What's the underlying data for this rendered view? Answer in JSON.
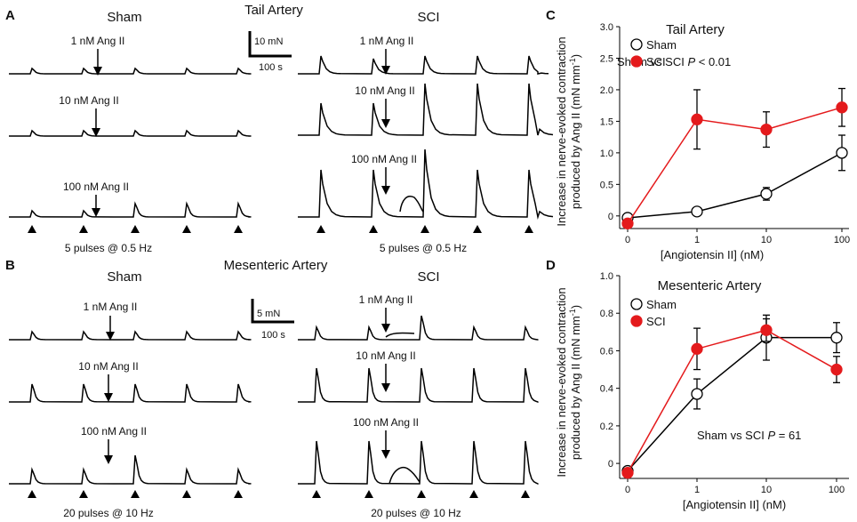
{
  "panel_letters": {
    "A": "A",
    "B": "B",
    "C": "C",
    "D": "D"
  },
  "panel_A": {
    "title": "Tail Artery",
    "sham_label": "Sham",
    "sci_label": "SCI",
    "scale_y": "10 mN",
    "scale_x": "100 s",
    "doses": [
      "1 nM Ang II",
      "10 nM Ang II",
      "100 nM Ang II"
    ],
    "stim_label": "5 pulses @ 0.5 Hz"
  },
  "panel_B": {
    "title": "Mesenteric Artery",
    "sham_label": "Sham",
    "sci_label": "SCI",
    "scale_y": "5 mN",
    "scale_x": "100 s",
    "doses": [
      "1 nM Ang II",
      "10 nM Ang II",
      "100 nM Ang II"
    ],
    "stim_label": "20 pulses @ 10 Hz"
  },
  "colors": {
    "sci": "#e41a1c",
    "sham": "#000000",
    "sham_fill": "#ffffff",
    "sci_fill": "#e41a1c"
  },
  "chart_data": [
    {
      "type": "line",
      "title": "Tail Artery",
      "xlabel": "[Angiotensin II] (nM)",
      "ylabel_line1": "Increase in nerve-evoked contraction",
      "ylabel_line2": "produced by Ang II (mN mm",
      "ylabel_sup": "-1",
      "ylabel_end": ")",
      "x_ticks": [
        "0",
        "1",
        "10",
        "100"
      ],
      "ylim": [
        -0.2,
        3.0
      ],
      "y_ticks": [
        "0",
        "0.5",
        "1.0",
        "1.5",
        "2.0",
        "2.5",
        "3.0"
      ],
      "y_tick_values": [
        0,
        0.5,
        1.0,
        1.5,
        2.0,
        2.5,
        3.0
      ],
      "stat_label": "Sham vs SCI ",
      "stat_p": "P",
      "stat_value": " < 0.01",
      "legend": [
        "Sham",
        "SCI"
      ],
      "series": [
        {
          "name": "Sham",
          "values": [
            -0.03,
            0.07,
            0.35,
            1.0
          ],
          "errors": [
            0.03,
            0.03,
            0.1,
            0.28
          ]
        },
        {
          "name": "SCI",
          "values": [
            -0.12,
            1.53,
            1.37,
            1.72
          ],
          "errors": [
            0.03,
            0.47,
            0.28,
            0.3
          ]
        }
      ]
    },
    {
      "type": "line",
      "title": "Mesenteric Artery",
      "xlabel": "[Angiotensin II] (nM)",
      "ylabel_line1": "Increase in nerve-evoked contraction",
      "ylabel_line2": "produced by Ang II (mN mm",
      "ylabel_sup": "-1",
      "ylabel_end": ")",
      "x_ticks": [
        "0",
        "1",
        "10",
        "100"
      ],
      "ylim": [
        -0.08,
        1.0
      ],
      "y_ticks": [
        "0",
        "0.2",
        "0.4",
        "0.6",
        "0.8",
        "1.0"
      ],
      "y_tick_values": [
        0,
        0.2,
        0.4,
        0.6,
        0.8,
        1.0
      ],
      "stat_label": "Sham vs SCI ",
      "stat_p": "P",
      "stat_value": " = 61",
      "legend": [
        "Sham",
        "SCI"
      ],
      "series": [
        {
          "name": "Sham",
          "values": [
            -0.04,
            0.37,
            0.67,
            0.67
          ],
          "errors": [
            0.02,
            0.08,
            0.12,
            0.08
          ]
        },
        {
          "name": "SCI",
          "values": [
            -0.05,
            0.61,
            0.71,
            0.5
          ],
          "errors": [
            0.02,
            0.11,
            0.06,
            0.07
          ]
        }
      ]
    }
  ]
}
